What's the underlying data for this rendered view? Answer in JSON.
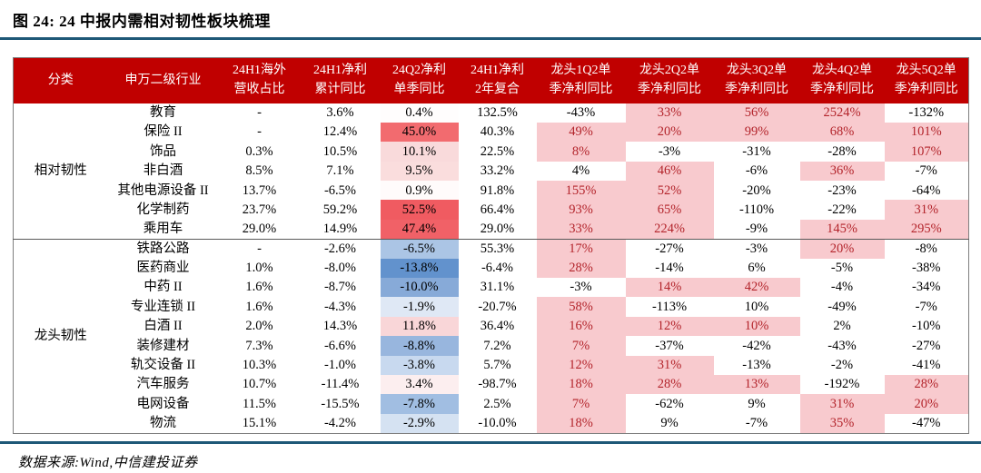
{
  "figure": {
    "title": "图 24: 24 中报内需相对韧性板块梳理",
    "source": "数据来源:Wind,中信建投证券"
  },
  "colors": {
    "header_bg": "#C00000",
    "header_text": "#FFFFFF",
    "leader_highlight_bg": "#F8CACE",
    "leader_highlight_text": "#B3242B",
    "rule_accent": "#1E5877"
  },
  "table": {
    "headers": [
      "分类",
      "申万二级行业",
      "24H1海外\n营收占比",
      "24H1净利\n累计同比",
      "24Q2净利\n单季同比",
      "24H1净利\n2年复合",
      "龙头1Q2单\n季净利同比",
      "龙头2Q2单\n季净利同比",
      "龙头3Q2单\n季净利同比",
      "龙头4Q2单\n季净利同比",
      "龙头5Q2单\n季净利同比"
    ],
    "groups": [
      {
        "label": "相对韧性",
        "rows": [
          {
            "industry": "教育",
            "overseas": "-",
            "h1_yoy": "3.6%",
            "q2_yoy": "0.4%",
            "q2_bg": "#FFFDFD",
            "compound_2y": "132.5%",
            "leaders": [
              {
                "v": "-43%",
                "hl": false
              },
              {
                "v": "33%",
                "hl": true
              },
              {
                "v": "56%",
                "hl": true
              },
              {
                "v": "2524%",
                "hl": true
              },
              {
                "v": "-132%",
                "hl": false
              }
            ]
          },
          {
            "industry": "保险 II",
            "overseas": "-",
            "h1_yoy": "12.4%",
            "q2_yoy": "45.0%",
            "q2_bg": "#F26B6F",
            "compound_2y": "40.3%",
            "leaders": [
              {
                "v": "49%",
                "hl": true
              },
              {
                "v": "20%",
                "hl": true
              },
              {
                "v": "99%",
                "hl": true
              },
              {
                "v": "68%",
                "hl": true
              },
              {
                "v": "101%",
                "hl": true
              }
            ]
          },
          {
            "industry": "饰品",
            "overseas": "0.3%",
            "h1_yoy": "10.5%",
            "q2_yoy": "10.1%",
            "q2_bg": "#F9DADB",
            "compound_2y": "22.5%",
            "leaders": [
              {
                "v": "8%",
                "hl": true
              },
              {
                "v": "-3%",
                "hl": false
              },
              {
                "v": "-31%",
                "hl": false
              },
              {
                "v": "-28%",
                "hl": false
              },
              {
                "v": "107%",
                "hl": true
              }
            ]
          },
          {
            "industry": "非白酒",
            "overseas": "8.5%",
            "h1_yoy": "7.1%",
            "q2_yoy": "9.5%",
            "q2_bg": "#FADDDD",
            "compound_2y": "33.2%",
            "leaders": [
              {
                "v": "4%",
                "hl": false
              },
              {
                "v": "46%",
                "hl": true
              },
              {
                "v": "-6%",
                "hl": false
              },
              {
                "v": "36%",
                "hl": true
              },
              {
                "v": "-7%",
                "hl": false
              }
            ]
          },
          {
            "industry": "其他电源设备 II",
            "overseas": "13.7%",
            "h1_yoy": "-6.5%",
            "q2_yoy": "0.9%",
            "q2_bg": "#FFFBFB",
            "compound_2y": "91.8%",
            "leaders": [
              {
                "v": "155%",
                "hl": true
              },
              {
                "v": "52%",
                "hl": true
              },
              {
                "v": "-20%",
                "hl": false
              },
              {
                "v": "-23%",
                "hl": false
              },
              {
                "v": "-64%",
                "hl": false
              }
            ]
          },
          {
            "industry": "化学制药",
            "overseas": "23.7%",
            "h1_yoy": "59.2%",
            "q2_yoy": "52.5%",
            "q2_bg": "#F05B61",
            "compound_2y": "66.4%",
            "leaders": [
              {
                "v": "93%",
                "hl": true
              },
              {
                "v": "65%",
                "hl": true
              },
              {
                "v": "-110%",
                "hl": false
              },
              {
                "v": "-22%",
                "hl": false
              },
              {
                "v": "31%",
                "hl": true
              }
            ]
          },
          {
            "industry": "乘用车",
            "overseas": "29.0%",
            "h1_yoy": "14.9%",
            "q2_yoy": "47.4%",
            "q2_bg": "#F16167",
            "compound_2y": "29.0%",
            "leaders": [
              {
                "v": "33%",
                "hl": true
              },
              {
                "v": "224%",
                "hl": true
              },
              {
                "v": "-9%",
                "hl": false
              },
              {
                "v": "145%",
                "hl": true
              },
              {
                "v": "295%",
                "hl": true
              }
            ]
          }
        ]
      },
      {
        "label": "龙头韧性",
        "rows": [
          {
            "industry": "铁路公路",
            "overseas": "-",
            "h1_yoy": "-2.6%",
            "q2_yoy": "-6.5%",
            "q2_bg": "#ABC5E5",
            "compound_2y": "55.3%",
            "leaders": [
              {
                "v": "17%",
                "hl": true
              },
              {
                "v": "-27%",
                "hl": false
              },
              {
                "v": "-3%",
                "hl": false
              },
              {
                "v": "20%",
                "hl": true
              },
              {
                "v": "-8%",
                "hl": false
              }
            ]
          },
          {
            "industry": "医药商业",
            "overseas": "1.0%",
            "h1_yoy": "-8.0%",
            "q2_yoy": "-13.8%",
            "q2_bg": "#6292CD",
            "compound_2y": "-6.4%",
            "leaders": [
              {
                "v": "28%",
                "hl": true
              },
              {
                "v": "-14%",
                "hl": false
              },
              {
                "v": "6%",
                "hl": false
              },
              {
                "v": "-5%",
                "hl": false
              },
              {
                "v": "-38%",
                "hl": false
              }
            ]
          },
          {
            "industry": "中药 II",
            "overseas": "1.6%",
            "h1_yoy": "-8.7%",
            "q2_yoy": "-10.0%",
            "q2_bg": "#87AAD8",
            "compound_2y": "31.1%",
            "leaders": [
              {
                "v": "-3%",
                "hl": false
              },
              {
                "v": "14%",
                "hl": true
              },
              {
                "v": "42%",
                "hl": true
              },
              {
                "v": "-4%",
                "hl": false
              },
              {
                "v": "-34%",
                "hl": false
              }
            ]
          },
          {
            "industry": "专业连锁 II",
            "overseas": "1.6%",
            "h1_yoy": "-4.3%",
            "q2_yoy": "-1.9%",
            "q2_bg": "#DFE8F5",
            "compound_2y": "-20.7%",
            "leaders": [
              {
                "v": "58%",
                "hl": true
              },
              {
                "v": "-113%",
                "hl": false
              },
              {
                "v": "10%",
                "hl": false
              },
              {
                "v": "-49%",
                "hl": false
              },
              {
                "v": "-7%",
                "hl": false
              }
            ]
          },
          {
            "industry": "白酒 II",
            "overseas": "2.0%",
            "h1_yoy": "14.3%",
            "q2_yoy": "11.8%",
            "q2_bg": "#F9D6D8",
            "compound_2y": "36.4%",
            "leaders": [
              {
                "v": "16%",
                "hl": true
              },
              {
                "v": "12%",
                "hl": true
              },
              {
                "v": "10%",
                "hl": true
              },
              {
                "v": "2%",
                "hl": false
              },
              {
                "v": "-10%",
                "hl": false
              }
            ]
          },
          {
            "industry": "装修建材",
            "overseas": "7.3%",
            "h1_yoy": "-6.6%",
            "q2_yoy": "-8.8%",
            "q2_bg": "#98B6DE",
            "compound_2y": "7.2%",
            "leaders": [
              {
                "v": "7%",
                "hl": true
              },
              {
                "v": "-37%",
                "hl": false
              },
              {
                "v": "-42%",
                "hl": false
              },
              {
                "v": "-43%",
                "hl": false
              },
              {
                "v": "-27%",
                "hl": false
              }
            ]
          },
          {
            "industry": "轨交设备 II",
            "overseas": "10.3%",
            "h1_yoy": "-1.0%",
            "q2_yoy": "-3.8%",
            "q2_bg": "#C8D9EF",
            "compound_2y": "5.7%",
            "leaders": [
              {
                "v": "12%",
                "hl": true
              },
              {
                "v": "31%",
                "hl": true
              },
              {
                "v": "-13%",
                "hl": false
              },
              {
                "v": "-2%",
                "hl": false
              },
              {
                "v": "-41%",
                "hl": false
              }
            ]
          },
          {
            "industry": "汽车服务",
            "overseas": "10.7%",
            "h1_yoy": "-11.4%",
            "q2_yoy": "3.4%",
            "q2_bg": "#FCEEEF",
            "compound_2y": "-98.7%",
            "leaders": [
              {
                "v": "18%",
                "hl": true
              },
              {
                "v": "28%",
                "hl": true
              },
              {
                "v": "13%",
                "hl": true
              },
              {
                "v": "-192%",
                "hl": false
              },
              {
                "v": "28%",
                "hl": true
              }
            ]
          },
          {
            "industry": "电网设备",
            "overseas": "11.5%",
            "h1_yoy": "-15.5%",
            "q2_yoy": "-7.8%",
            "q2_bg": "#A1BEE2",
            "compound_2y": "2.5%",
            "leaders": [
              {
                "v": "7%",
                "hl": true
              },
              {
                "v": "-62%",
                "hl": false
              },
              {
                "v": "9%",
                "hl": false
              },
              {
                "v": "31%",
                "hl": true
              },
              {
                "v": "20%",
                "hl": true
              }
            ]
          },
          {
            "industry": "物流",
            "overseas": "15.1%",
            "h1_yoy": "-4.2%",
            "q2_yoy": "-2.9%",
            "q2_bg": "#D5E2F2",
            "compound_2y": "-10.0%",
            "leaders": [
              {
                "v": "18%",
                "hl": true
              },
              {
                "v": "9%",
                "hl": false
              },
              {
                "v": "-7%",
                "hl": false
              },
              {
                "v": "35%",
                "hl": true
              },
              {
                "v": "-47%",
                "hl": false
              }
            ]
          }
        ]
      }
    ]
  }
}
